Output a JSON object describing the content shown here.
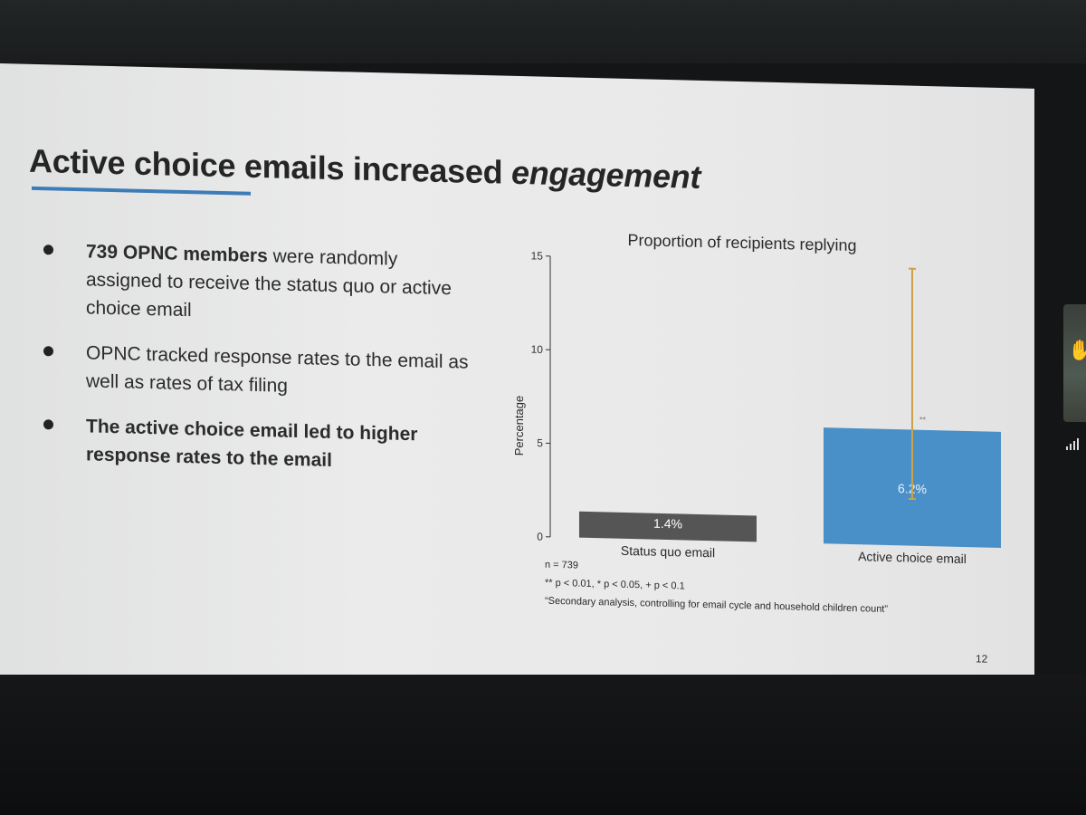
{
  "slide": {
    "title_prefix": "Active choice emails increased ",
    "title_emphasis": "engagement",
    "bullets": [
      {
        "bold": "739 OPNC members",
        "rest": " were randomly assigned to receive the status quo or active choice email"
      },
      {
        "bold": "",
        "rest": "OPNC tracked response rates to the email as well as rates of tax filing"
      },
      {
        "bold": "The active choice email led to higher response rates to the email",
        "rest": ""
      }
    ],
    "footnotes": {
      "n": "n = 739",
      "significance": "** p < 0.01, * p < 0.05, + p < 0.1",
      "secondary": "“Secondary analysis, controlling for email cycle and household children count”"
    },
    "page_number": "12"
  },
  "chart_data": {
    "type": "bar",
    "title": "Proportion of recipients replying",
    "ylabel": "Percentage",
    "xlabel": "",
    "ylim": [
      0,
      15
    ],
    "yticks": [
      0,
      5,
      10,
      15
    ],
    "categories": [
      "Status quo email",
      "Active choice email"
    ],
    "values": [
      1.4,
      6.2
    ],
    "value_labels": [
      "1.4%",
      "6.2%"
    ],
    "colors": [
      "#555555",
      "#4a90c8"
    ],
    "error_bar": {
      "category": "Active choice email",
      "low": 2.5,
      "high": 14.8,
      "color": "#c9a24a"
    },
    "significance_marker": {
      "category": "Active choice email",
      "label": "**",
      "y": 6.6
    }
  },
  "meeting_overlay": {
    "hand_icon": "raised-hand-icon",
    "signal_icon": "signal-bars-icon"
  }
}
